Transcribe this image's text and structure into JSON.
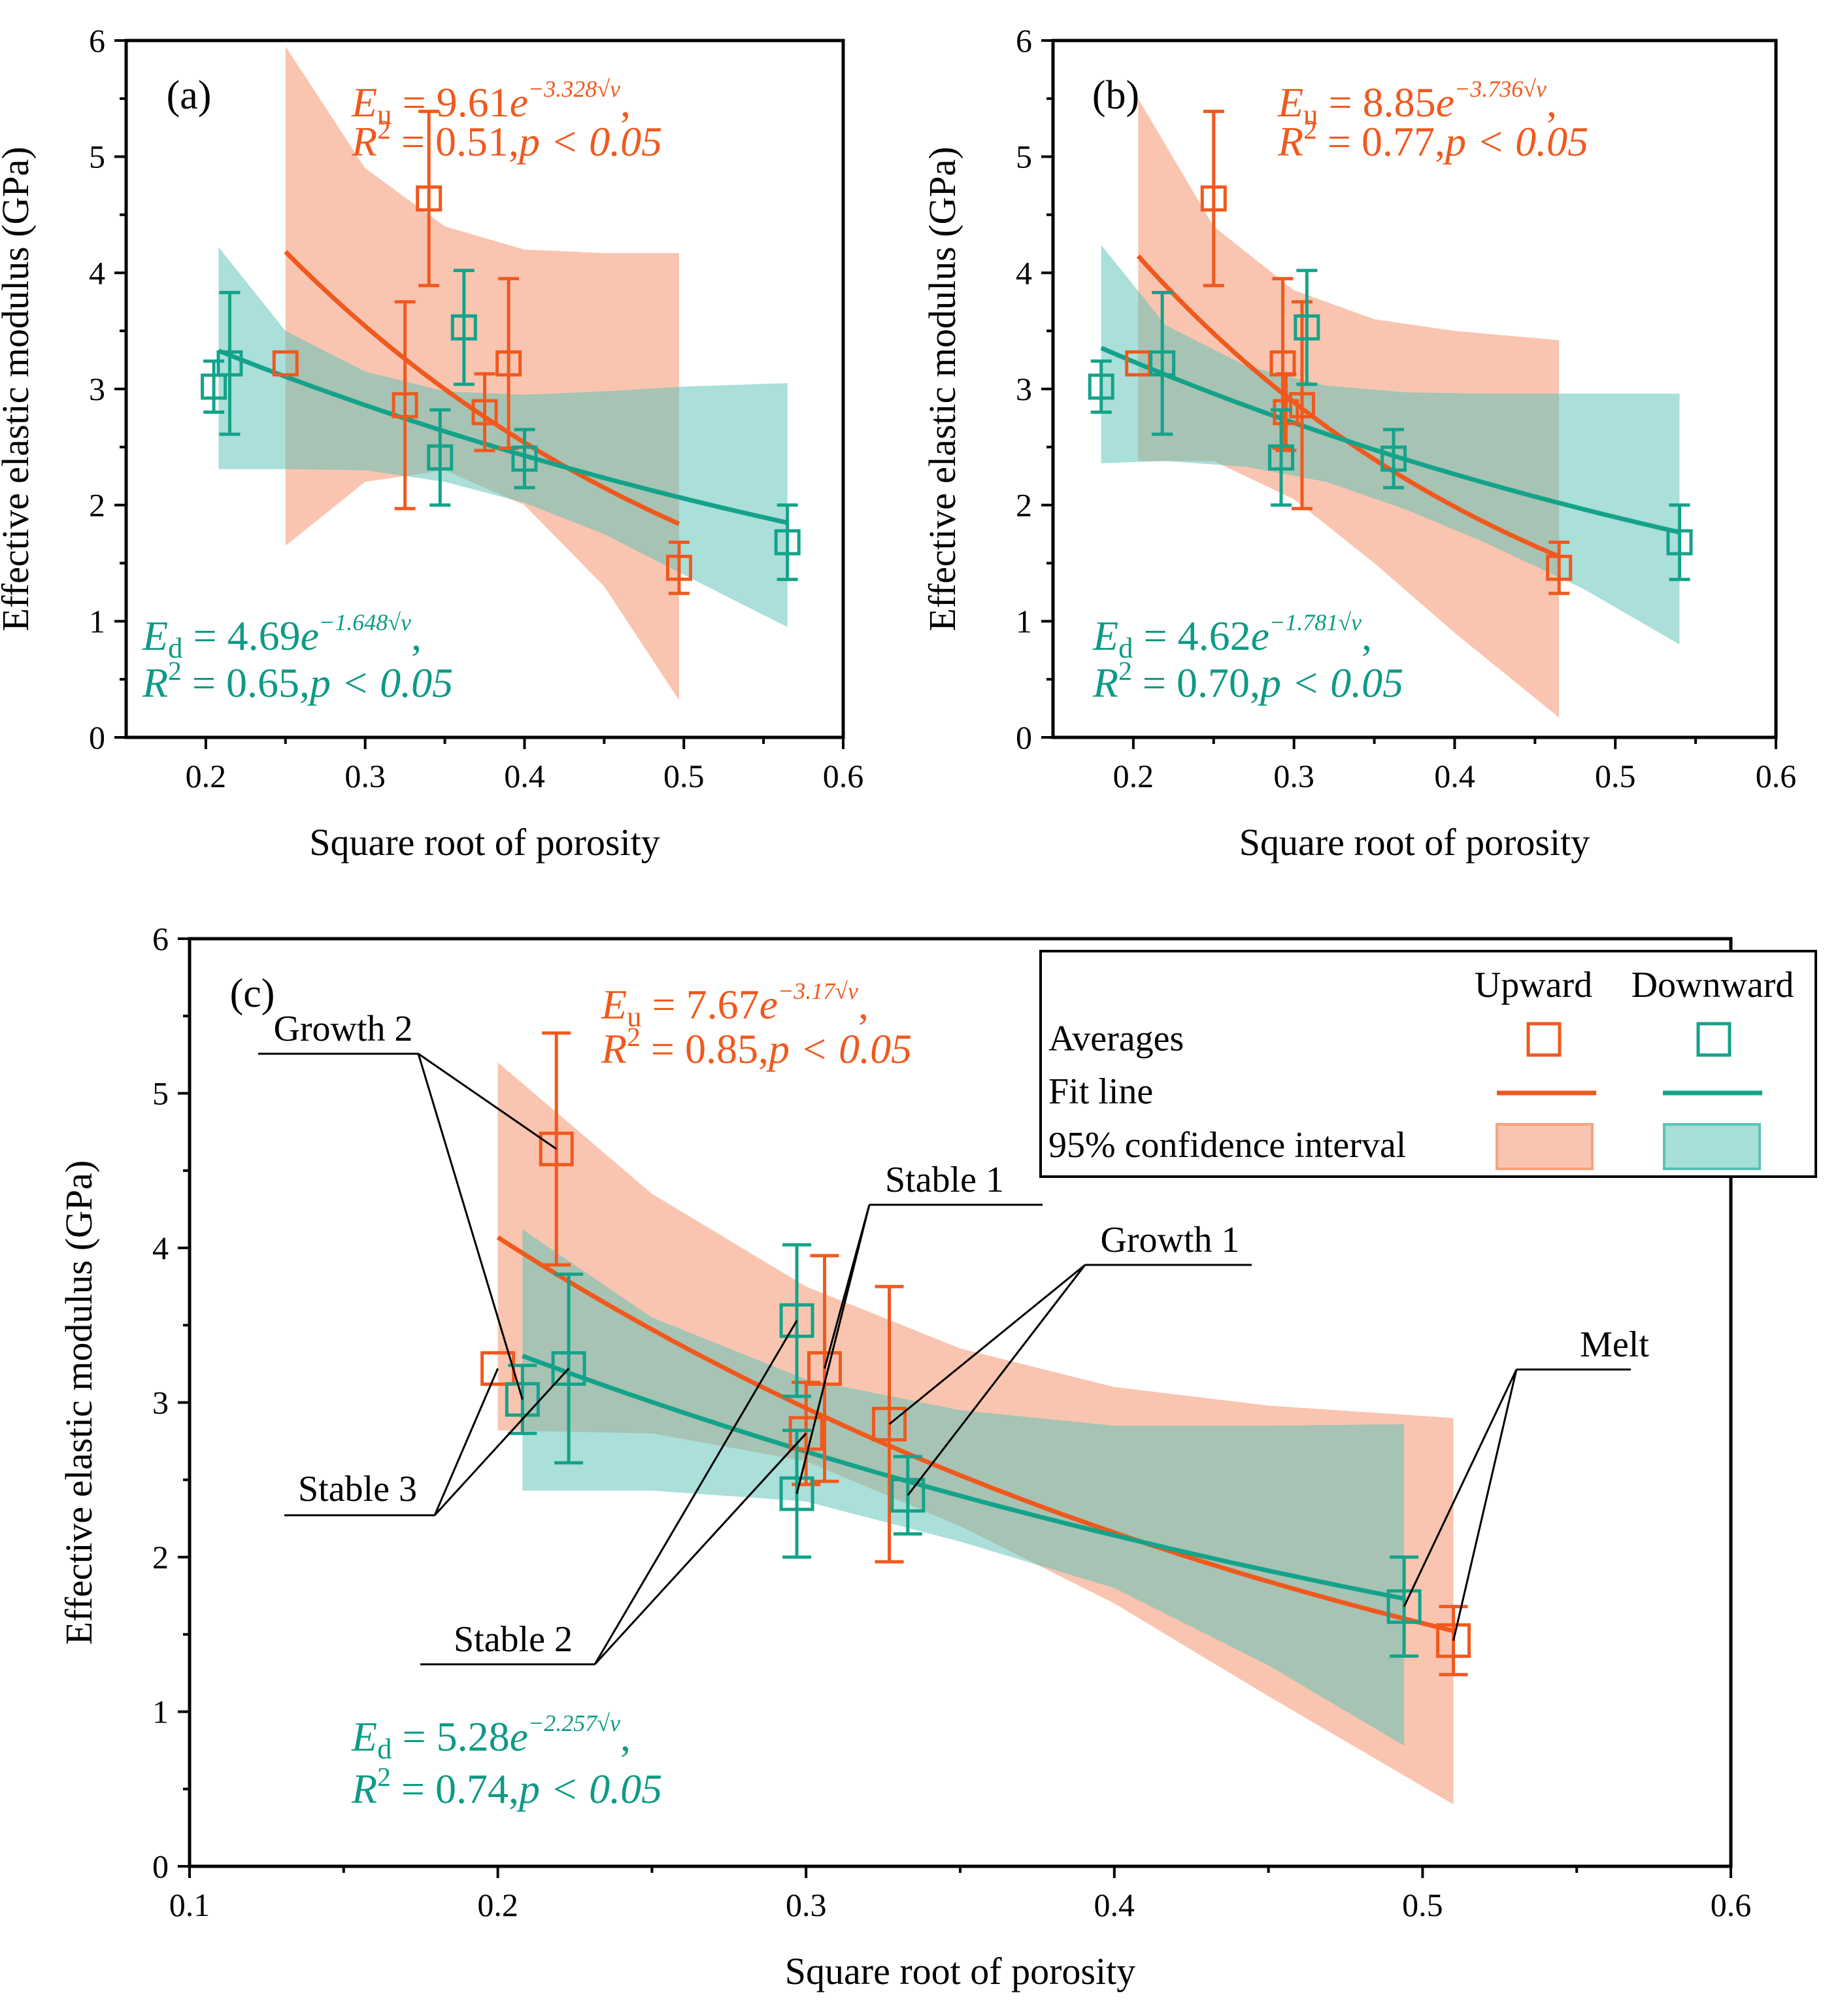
{
  "colors": {
    "upward": "#f0591e",
    "downward": "#14a38a",
    "upward_fill": "#f5a27f",
    "downward_fill": "#5cc2b8",
    "label_green": "#0e9a85"
  },
  "chart_data": [
    {
      "id": "a",
      "type": "scatter",
      "panel_label": "(a)",
      "xlabel": "Square root of porosity",
      "ylabel": "Effective elastic modulus (GPa)",
      "xlim": [
        0.15,
        0.6
      ],
      "ylim": [
        0,
        6
      ],
      "xticks": [
        0.2,
        0.3,
        0.4,
        0.5,
        0.6
      ],
      "xtick_labels": [
        "0.2",
        "0.3",
        "0.4",
        "0.5",
        "0.6"
      ],
      "yticks": [
        0,
        1,
        2,
        3,
        4,
        5,
        6
      ],
      "ytick_labels": [
        "0",
        "1",
        "2",
        "3",
        "4",
        "5",
        "6"
      ],
      "series": [
        {
          "name": "Upward",
          "points": [
            {
              "x": 0.25,
              "y": 3.22,
              "err": 0.0
            },
            {
              "x": 0.325,
              "y": 2.86,
              "err": 0.89
            },
            {
              "x": 0.34,
              "y": 4.64,
              "err": 0.75
            },
            {
              "x": 0.375,
              "y": 2.8,
              "err": 0.33
            },
            {
              "x": 0.39,
              "y": 3.22,
              "err": 0.73
            },
            {
              "x": 0.497,
              "y": 1.46,
              "err": 0.22
            }
          ],
          "fit": {
            "a": 9.61,
            "b": 3.328,
            "x_range": [
              0.25,
              0.497
            ]
          },
          "ci": {
            "x": [
              0.25,
              0.3,
              0.35,
              0.4,
              0.45,
              0.497
            ],
            "upper": [
              5.95,
              4.9,
              4.4,
              4.2,
              4.17,
              4.17
            ],
            "lower": [
              1.65,
              2.2,
              2.3,
              2.0,
              1.3,
              0.32
            ]
          },
          "equation": {
            "var": "E",
            "sub": "u",
            "coef": "9.61",
            "exp": "−3.328√v",
            "r2": "0.51",
            "p": "p < 0.05"
          }
        },
        {
          "name": "Downward",
          "points": [
            {
              "x": 0.205,
              "y": 3.02,
              "err": 0.22
            },
            {
              "x": 0.215,
              "y": 3.22,
              "err": 0.61
            },
            {
              "x": 0.347,
              "y": 2.41,
              "err": 0.41
            },
            {
              "x": 0.362,
              "y": 3.53,
              "err": 0.49
            },
            {
              "x": 0.4,
              "y": 2.4,
              "err": 0.25
            },
            {
              "x": 0.565,
              "y": 1.68,
              "err": 0.32
            }
          ],
          "fit": {
            "a": 4.69,
            "b": 1.648,
            "x_range": [
              0.208,
              0.565
            ]
          },
          "ci": {
            "x": [
              0.208,
              0.25,
              0.3,
              0.35,
              0.4,
              0.45,
              0.5,
              0.565
            ],
            "upper": [
              4.22,
              3.5,
              3.15,
              2.98,
              2.95,
              2.98,
              3.02,
              3.05
            ],
            "lower": [
              2.31,
              2.31,
              2.3,
              2.2,
              2.02,
              1.75,
              1.4,
              0.95
            ]
          },
          "equation": {
            "var": "E",
            "sub": "d",
            "coef": "4.69",
            "exp": "−1.648√v",
            "r2": "0.65",
            "p": "p < 0.05"
          }
        }
      ]
    },
    {
      "id": "b",
      "type": "scatter",
      "panel_label": "(b)",
      "xlabel": "Square root of porosity",
      "ylabel": "Effective elastic modulus (GPa)",
      "xlim": [
        0.15,
        0.6
      ],
      "ylim": [
        0,
        6
      ],
      "xticks": [
        0.2,
        0.3,
        0.4,
        0.5,
        0.6
      ],
      "xtick_labels": [
        "0.2",
        "0.3",
        "0.4",
        "0.5",
        "0.6"
      ],
      "yticks": [
        0,
        1,
        2,
        3,
        4,
        5,
        6
      ],
      "ytick_labels": [
        "0",
        "1",
        "2",
        "3",
        "4",
        "5",
        "6"
      ],
      "series": [
        {
          "name": "Upward",
          "points": [
            {
              "x": 0.203,
              "y": 3.22,
              "err": 0.0
            },
            {
              "x": 0.25,
              "y": 4.64,
              "err": 0.75
            },
            {
              "x": 0.293,
              "y": 3.22,
              "err": 0.73
            },
            {
              "x": 0.295,
              "y": 2.8,
              "err": 0.33
            },
            {
              "x": 0.305,
              "y": 2.86,
              "err": 0.89
            },
            {
              "x": 0.465,
              "y": 1.46,
              "err": 0.22
            }
          ],
          "fit": {
            "a": 8.85,
            "b": 3.736,
            "x_range": [
              0.203,
              0.465
            ]
          },
          "ci": {
            "x": [
              0.203,
              0.25,
              0.3,
              0.35,
              0.4,
              0.465
            ],
            "upper": [
              5.5,
              4.4,
              3.85,
              3.6,
              3.5,
              3.42
            ],
            "lower": [
              2.38,
              2.38,
              2.05,
              1.5,
              0.9,
              0.17
            ]
          },
          "equation": {
            "var": "E",
            "sub": "u",
            "coef": "8.85",
            "exp": "−3.736√v",
            "r2": "0.77",
            "p": "p < 0.05"
          }
        },
        {
          "name": "Downward",
          "points": [
            {
              "x": 0.18,
              "y": 3.02,
              "err": 0.22
            },
            {
              "x": 0.218,
              "y": 3.22,
              "err": 0.61
            },
            {
              "x": 0.292,
              "y": 2.41,
              "err": 0.41
            },
            {
              "x": 0.308,
              "y": 3.53,
              "err": 0.49
            },
            {
              "x": 0.362,
              "y": 2.4,
              "err": 0.25
            },
            {
              "x": 0.54,
              "y": 1.68,
              "err": 0.32
            }
          ],
          "fit": {
            "a": 4.62,
            "b": 1.781,
            "x_range": [
              0.18,
              0.54
            ]
          },
          "ci": {
            "x": [
              0.18,
              0.22,
              0.27,
              0.32,
              0.37,
              0.42,
              0.48,
              0.54
            ],
            "upper": [
              4.24,
              3.55,
              3.2,
              3.03,
              2.97,
              2.96,
              2.96,
              2.96
            ],
            "lower": [
              2.36,
              2.38,
              2.33,
              2.2,
              1.96,
              1.67,
              1.28,
              0.8
            ]
          },
          "equation": {
            "var": "E",
            "sub": "d",
            "coef": "4.62",
            "exp": "−1.781√v",
            "r2": "0.70",
            "p": "p < 0.05"
          }
        }
      ]
    },
    {
      "id": "c",
      "type": "scatter",
      "panel_label": "(c)",
      "xlabel": "Square root of porosity",
      "ylabel": "Effective elastic modulus (GPa)",
      "xlim": [
        0.1,
        0.6
      ],
      "ylim": [
        0,
        6
      ],
      "xticks": [
        0.1,
        0.2,
        0.3,
        0.4,
        0.5,
        0.6
      ],
      "xtick_labels": [
        "0.1",
        "0.2",
        "0.3",
        "0.4",
        "0.5",
        "0.6"
      ],
      "yticks": [
        0,
        1,
        2,
        3,
        4,
        5,
        6
      ],
      "ytick_labels": [
        "0",
        "1",
        "2",
        "3",
        "4",
        "5",
        "6"
      ],
      "series": [
        {
          "name": "Upward",
          "points": [
            {
              "x": 0.2,
              "y": 3.22,
              "err": 0.0
            },
            {
              "x": 0.219,
              "y": 4.64,
              "err": 0.75
            },
            {
              "x": 0.3,
              "y": 2.8,
              "err": 0.33
            },
            {
              "x": 0.306,
              "y": 3.22,
              "err": 0.73
            },
            {
              "x": 0.327,
              "y": 2.86,
              "err": 0.89
            },
            {
              "x": 0.51,
              "y": 1.46,
              "err": 0.22
            }
          ],
          "fit": {
            "a": 7.67,
            "b": 3.17,
            "x_range": [
              0.2,
              0.51
            ]
          },
          "ci": {
            "x": [
              0.2,
              0.25,
              0.3,
              0.35,
              0.4,
              0.45,
              0.51
            ],
            "upper": [
              5.2,
              4.35,
              3.75,
              3.35,
              3.1,
              2.98,
              2.9
            ],
            "lower": [
              2.82,
              2.8,
              2.62,
              2.2,
              1.7,
              1.1,
              0.4
            ]
          },
          "equation": {
            "var": "E",
            "sub": "u",
            "coef": "7.67",
            "exp": "−3.17√v",
            "r2": "0.85",
            "p": "p < 0.05"
          }
        },
        {
          "name": "Downward",
          "points": [
            {
              "x": 0.208,
              "y": 3.02,
              "err": 0.22
            },
            {
              "x": 0.223,
              "y": 3.22,
              "err": 0.61
            },
            {
              "x": 0.297,
              "y": 2.41,
              "err": 0.41
            },
            {
              "x": 0.297,
              "y": 3.53,
              "err": 0.49
            },
            {
              "x": 0.333,
              "y": 2.4,
              "err": 0.25
            },
            {
              "x": 0.494,
              "y": 1.68,
              "err": 0.32
            }
          ],
          "fit": {
            "a": 5.28,
            "b": 2.257,
            "x_range": [
              0.208,
              0.494
            ]
          },
          "ci": {
            "x": [
              0.208,
              0.25,
              0.3,
              0.35,
              0.4,
              0.45,
              0.494
            ],
            "upper": [
              4.12,
              3.55,
              3.15,
              2.95,
              2.85,
              2.85,
              2.86
            ],
            "lower": [
              2.43,
              2.43,
              2.36,
              2.1,
              1.8,
              1.3,
              0.78
            ]
          },
          "equation": {
            "var": "E",
            "sub": "d",
            "coef": "5.28",
            "exp": "−2.257√v",
            "r2": "0.74",
            "p": "p < 0.05"
          }
        }
      ],
      "legend": {
        "col_upward": "Upward",
        "col_downward": "Downward",
        "row_averages": "Averages",
        "row_fit": "Fit line",
        "row_ci": "95% confidence interval",
        "placement": "top-right"
      },
      "annotations": [
        {
          "label": "Growth 2",
          "targets": [
            [
              0.219,
              4.64
            ],
            [
              0.208,
              3.02
            ]
          ]
        },
        {
          "label": "Stable 3",
          "targets": [
            [
              0.2,
              3.22
            ],
            [
              0.223,
              3.22
            ]
          ]
        },
        {
          "label": "Stable 1",
          "targets": [
            [
              0.306,
              3.22
            ],
            [
              0.297,
              2.41
            ]
          ]
        },
        {
          "label": "Growth 1",
          "targets": [
            [
              0.327,
              2.86
            ],
            [
              0.333,
              2.4
            ]
          ]
        },
        {
          "label": "Stable 2",
          "targets": [
            [
              0.297,
              3.53
            ],
            [
              0.3,
              2.8
            ]
          ]
        },
        {
          "label": "Melt",
          "targets": [
            [
              0.494,
              1.68
            ],
            [
              0.51,
              1.46
            ]
          ]
        }
      ]
    }
  ]
}
